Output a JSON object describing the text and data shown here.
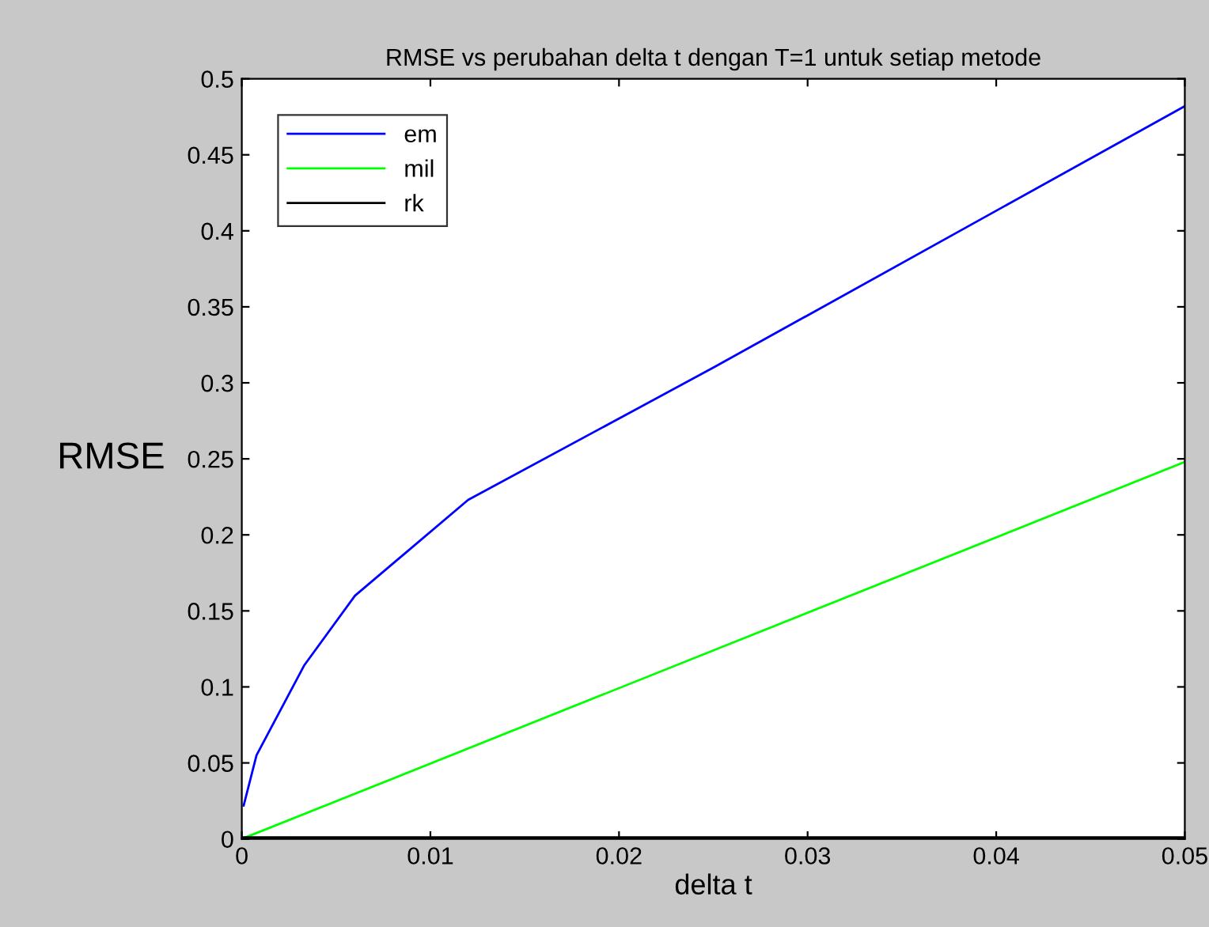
{
  "chart_data": {
    "type": "line",
    "title": "RMSE vs perubahan delta t dengan T=1 untuk setiap metode",
    "xlabel": "delta t",
    "ylabel": "RMSE",
    "series": [
      {
        "name": "em",
        "color": "#0000ff",
        "x": [
          0.0001,
          0.00078,
          0.0033,
          0.006,
          0.012,
          0.025,
          0.05
        ],
        "values": [
          0.022,
          0.055,
          0.114,
          0.16,
          0.223,
          0.31,
          0.482
        ]
      },
      {
        "name": "mil",
        "color": "#00ff00",
        "x": [
          0,
          0.05
        ],
        "values": [
          0,
          0.248
        ]
      },
      {
        "name": "rk",
        "color": "#000000",
        "x": [
          0,
          0.05
        ],
        "values": [
          0.001,
          0.001
        ]
      }
    ],
    "xlim": [
      0,
      0.05
    ],
    "xticks": [
      0,
      0.01,
      0.02,
      0.03,
      0.04,
      0.05
    ],
    "ylim": [
      0,
      0.5
    ],
    "yticks": [
      0,
      0.05,
      0.1,
      0.15,
      0.2,
      0.25,
      0.3,
      0.35,
      0.4,
      0.45,
      0.5
    ],
    "grid": false,
    "legend": "top left",
    "marker": "none",
    "line_style": "solid"
  }
}
